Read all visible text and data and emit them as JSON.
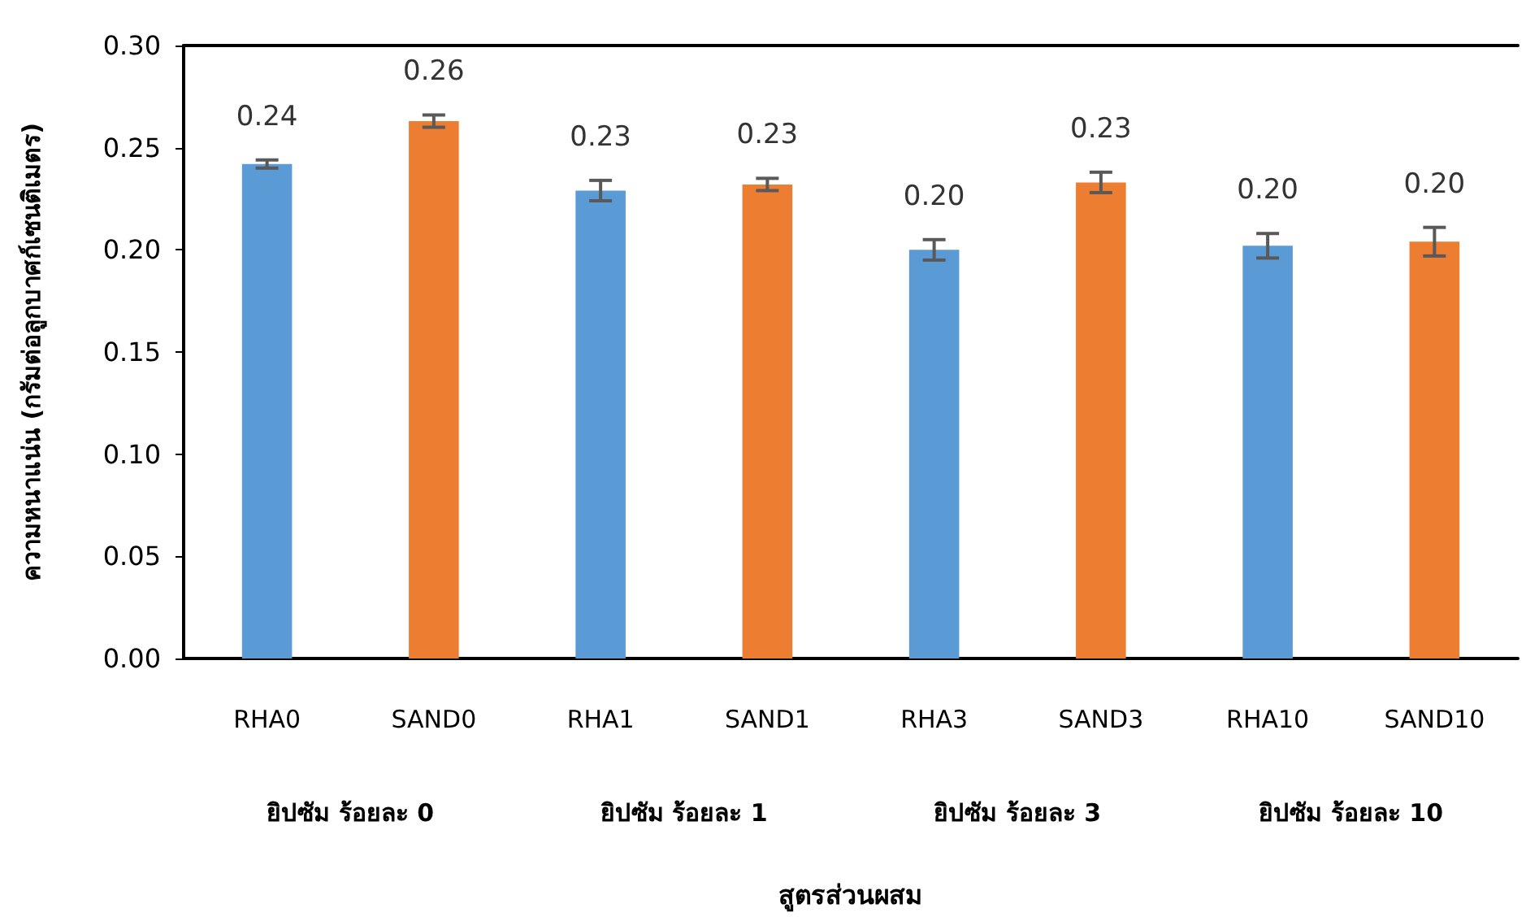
{
  "chart_data": {
    "type": "bar",
    "ylabel": "ความหนาแน่น (กรัมต่อลูกบาศก์เซนติเมตร)",
    "categories": [
      "RHA0",
      "SAND0",
      "RHA1",
      "SAND1",
      "RHA3",
      "SAND3",
      "RHA10",
      "SAND10"
    ],
    "values": [
      0.242,
      0.263,
      0.229,
      0.232,
      0.2,
      0.233,
      0.202,
      0.204
    ],
    "colors": [
      "#5b9bd5",
      "#ed7d31",
      "#5b9bd5",
      "#ed7d31",
      "#5b9bd5",
      "#ed7d31",
      "#5b9bd5",
      "#ed7d31"
    ],
    "errors": [
      0.002,
      0.003,
      0.005,
      0.003,
      0.005,
      0.005,
      0.006,
      0.007
    ],
    "value_labels": [
      "0.24",
      "0.26",
      "0.23",
      "0.23",
      "0.20",
      "0.23",
      "0.20",
      "0.20"
    ],
    "annotations": [
      "ยิปซัม ร้อยละ 0",
      "ยิปซัม ร้อยละ 1",
      "ยิปซัม ร้อยละ 3",
      "ยิปซัม ร้อยละ 10",
      "สูตรส่วนผสม"
    ],
    "ylim": [
      0,
      0.3
    ],
    "yticks": [
      {
        "value": 0,
        "label": "0.00"
      },
      {
        "value": 0.05,
        "label": "0.05"
      },
      {
        "value": 0.1,
        "label": "0.10"
      },
      {
        "value": 0.15,
        "label": "0.15"
      },
      {
        "value": 0.2,
        "label": "0.20"
      },
      {
        "value": 0.25,
        "label": "0.25"
      },
      {
        "value": 0.3,
        "label": "0.30"
      }
    ],
    "grid": false
  }
}
